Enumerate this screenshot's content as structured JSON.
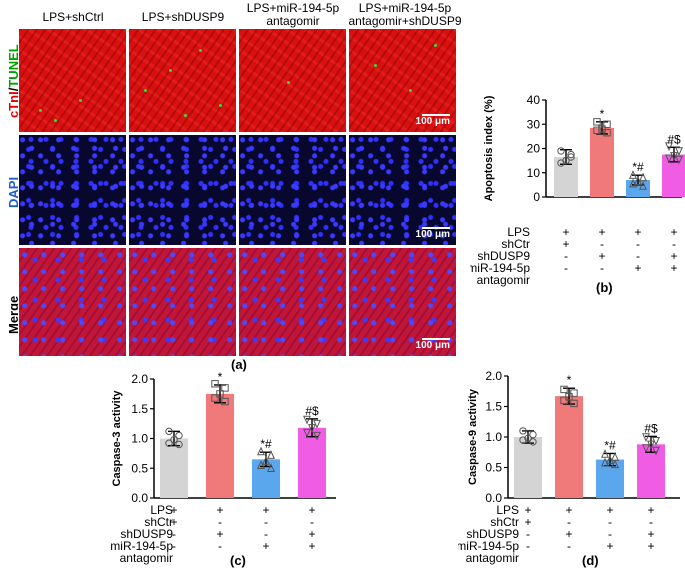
{
  "figure": {
    "columns": [
      "LPS+shCtrl",
      "LPS+shDUSP9",
      "LPS+miR-194-5p\nantagomir",
      "LPS+miR-194-5p\nantagomir+shDUSP9"
    ],
    "rows": [
      {
        "label_parts": [
          "cTnI",
          "/",
          "TUNEL"
        ],
        "colors": [
          "#e00000",
          "#000000",
          "#00a000"
        ]
      },
      {
        "label_parts": [
          "DAPI"
        ],
        "colors": [
          "#1f5bd6"
        ]
      },
      {
        "label_parts": [
          "Merge"
        ],
        "colors": [
          "#000000"
        ]
      }
    ],
    "scale_bar": "100 μm",
    "captions": {
      "a": "(a)",
      "b": "(b)",
      "c": "(c)",
      "d": "(d)"
    }
  },
  "treatment_table": {
    "row_labels": [
      "LPS",
      "shCtr",
      "shDUSP9",
      "miR-194-5p",
      "antagomir"
    ],
    "rows_b": [
      [
        "+",
        "+",
        "+",
        "+"
      ],
      [
        "+",
        "-",
        "-",
        "-"
      ],
      [
        "-",
        "+",
        "-",
        "+"
      ],
      [
        "-",
        "-",
        "+",
        "+"
      ]
    ],
    "rows_c": [
      [
        "+",
        "+",
        "+",
        "+"
      ],
      [
        "+",
        "-",
        "-",
        "-"
      ],
      [
        "-",
        "+",
        "-",
        "+"
      ],
      [
        "-",
        "-",
        "+",
        "+"
      ]
    ],
    "rows_d": [
      [
        "+",
        "+",
        "+",
        "+"
      ],
      [
        "+",
        "-",
        "-",
        "-"
      ],
      [
        "-",
        "+",
        "-",
        "+"
      ],
      [
        "-",
        "-",
        "+",
        "+"
      ]
    ]
  },
  "chart_data": [
    {
      "id": "b",
      "type": "bar",
      "ylabel": "Apoptosis index (%)",
      "ylim": [
        0,
        40
      ],
      "yticks": [
        0,
        10,
        20,
        30,
        40
      ],
      "categories": [
        "LPS+shCtrl",
        "LPS+shDUSP9",
        "LPS+miR-194-5p antagomir",
        "LPS+miR-194-5p antagomir+shDUSP9"
      ],
      "values": [
        16.5,
        28.5,
        7.0,
        17.5
      ],
      "errors": [
        3.0,
        2.5,
        2.0,
        3.0
      ],
      "colors": [
        "#d4d4d4",
        "#f07a7a",
        "#5aa7ee",
        "#f05ce4"
      ],
      "markers": [
        "circle",
        "square",
        "triangle",
        "triangle-down"
      ],
      "points": [
        [
          19,
          17.5,
          15,
          14,
          16.5
        ],
        [
          31,
          30,
          28,
          27.5,
          26.5
        ],
        [
          9,
          8,
          6.5,
          5.5,
          4.5
        ],
        [
          21,
          19,
          17,
          16,
          15.5
        ]
      ],
      "annotations": [
        "",
        "*",
        "*#",
        "#$"
      ]
    },
    {
      "id": "c",
      "type": "bar",
      "ylabel": "Caspase-3 activity",
      "ylim": [
        0,
        2.0
      ],
      "yticks": [
        0.0,
        0.5,
        1.0,
        1.5,
        2.0
      ],
      "ytick_labels": [
        "0.0",
        "0.5",
        "1.0",
        "1.5",
        "2.0"
      ],
      "categories": [
        "LPS+shCtrl",
        "LPS+shDUSP9",
        "LPS+miR-194-5p antagomir",
        "LPS+miR-194-5p antagomir+shDUSP9"
      ],
      "values": [
        1.0,
        1.75,
        0.65,
        1.18
      ],
      "errors": [
        0.12,
        0.15,
        0.12,
        0.15
      ],
      "colors": [
        "#d4d4d4",
        "#f07a7a",
        "#5aa7ee",
        "#f05ce4"
      ],
      "markers": [
        "circle",
        "square",
        "triangle",
        "triangle-down"
      ],
      "points": [
        [
          1.12,
          1.05,
          0.98,
          0.92,
          0.9
        ],
        [
          1.92,
          1.85,
          1.75,
          1.68,
          1.62
        ],
        [
          0.78,
          0.72,
          0.62,
          0.55,
          0.5
        ],
        [
          1.32,
          1.25,
          1.18,
          1.1,
          1.05
        ]
      ],
      "annotations": [
        "",
        "*",
        "*#",
        "#$"
      ]
    },
    {
      "id": "d",
      "type": "bar",
      "ylabel": "Caspase-9 activity",
      "ylim": [
        0,
        2.0
      ],
      "yticks": [
        0.0,
        0.5,
        1.0,
        1.5,
        2.0
      ],
      "ytick_labels": [
        "0.0",
        "0.5",
        "1.0",
        "1.5",
        "2.0"
      ],
      "categories": [
        "LPS+shCtrl",
        "LPS+shDUSP9",
        "LPS+miR-194-5p antagomir",
        "LPS+miR-194-5p antagomir+shDUSP9"
      ],
      "values": [
        1.0,
        1.67,
        0.63,
        0.88
      ],
      "errors": [
        0.1,
        0.13,
        0.1,
        0.13
      ],
      "colors": [
        "#d4d4d4",
        "#f07a7a",
        "#5aa7ee",
        "#f05ce4"
      ],
      "markers": [
        "circle",
        "square",
        "triangle",
        "triangle-down"
      ],
      "points": [
        [
          1.1,
          1.04,
          0.98,
          0.95,
          0.92
        ],
        [
          1.78,
          1.72,
          1.66,
          1.6,
          1.55
        ],
        [
          0.72,
          0.67,
          0.62,
          0.58,
          0.55
        ],
        [
          1.0,
          0.94,
          0.88,
          0.82,
          0.78
        ]
      ],
      "annotations": [
        "",
        "*",
        "*#",
        "#$"
      ]
    }
  ]
}
